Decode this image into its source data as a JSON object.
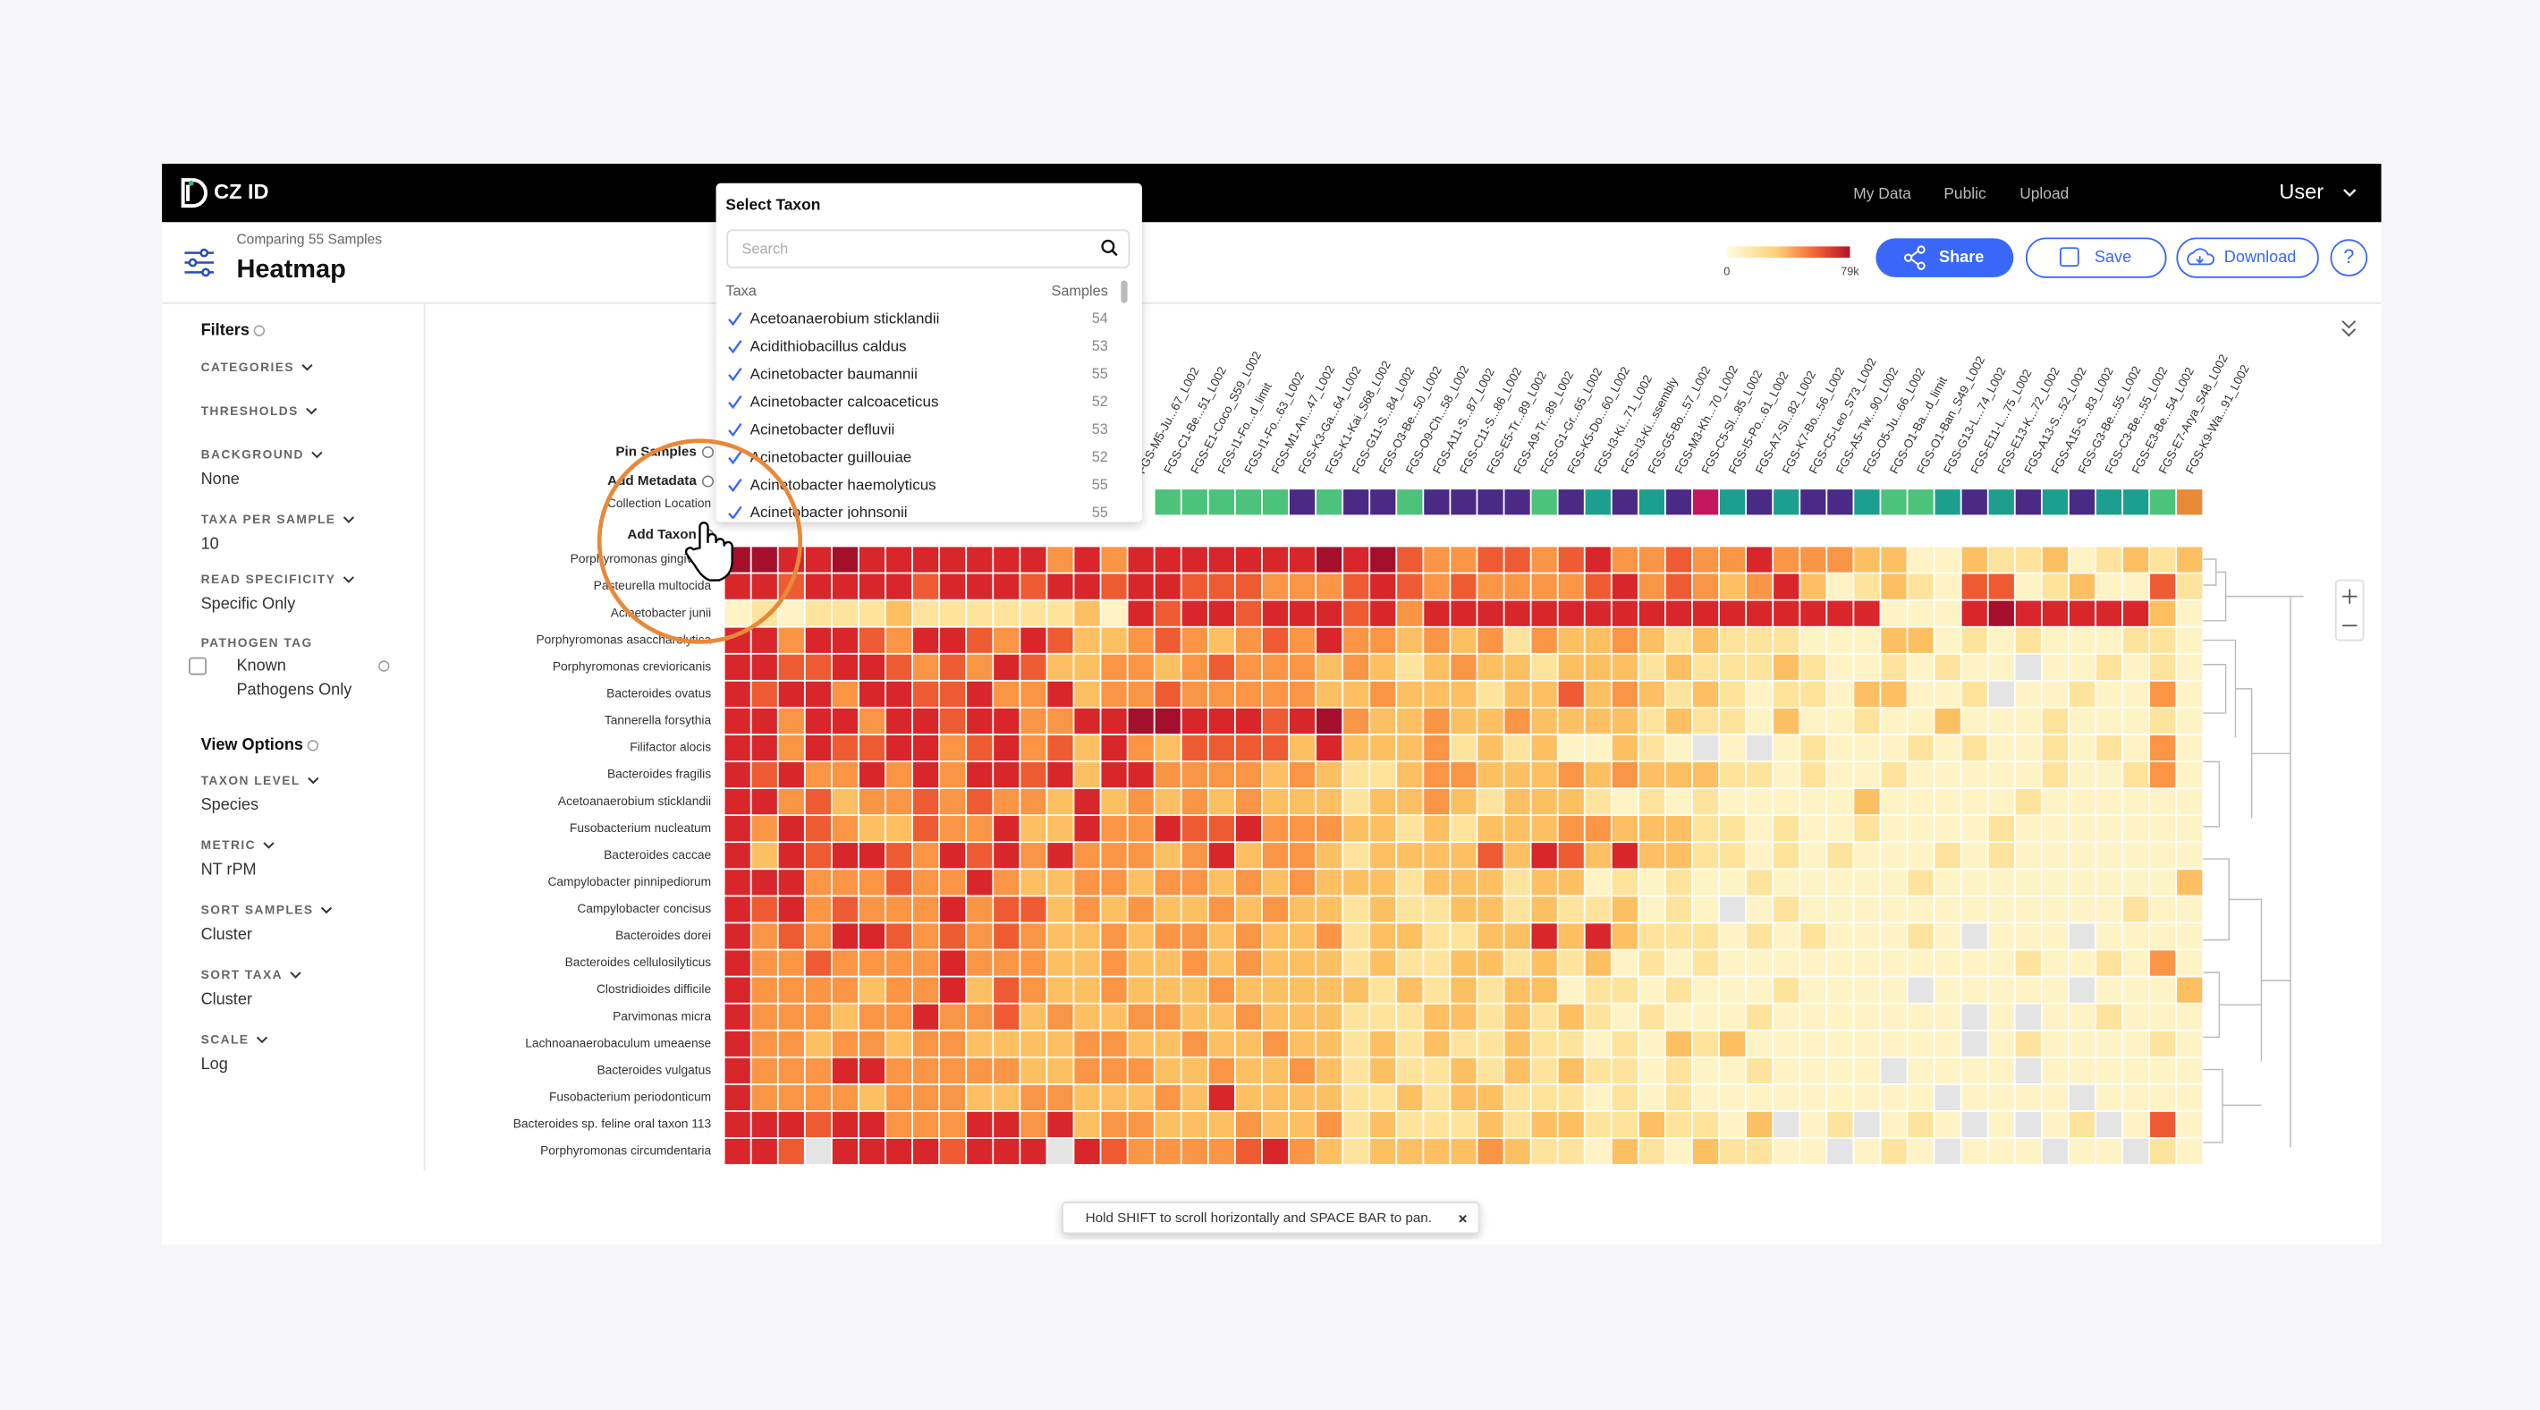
{
  "nav": {
    "brand": "CZ ID",
    "links": [
      "My Data",
      "Public",
      "Upload"
    ],
    "user": "User"
  },
  "header": {
    "subtitle": "Comparing 55 Samples",
    "title": "Heatmap",
    "legend_min": "0",
    "legend_max": "79k",
    "buttons": [
      "Share",
      "Save",
      "Download"
    ]
  },
  "filters": {
    "title": "Filters",
    "items": [
      {
        "label": "CATEGORIES"
      },
      {
        "label": "THRESHOLDS"
      },
      {
        "label": "BACKGROUND",
        "value": "None"
      },
      {
        "label": "TAXA PER SAMPLE",
        "value": "10"
      },
      {
        "label": "READ SPECIFICITY",
        "value": "Specific Only"
      },
      {
        "label": "PATHOGEN TAG",
        "value": [
          "Known",
          "Pathogens Only"
        ]
      }
    ]
  },
  "view_options": {
    "title": "View Options",
    "items": [
      {
        "label": "TAXON LEVEL",
        "value": "Species"
      },
      {
        "label": "METRIC",
        "value": "NT rPM"
      },
      {
        "label": "SORT SAMPLES",
        "value": "Cluster"
      },
      {
        "label": "SORT TAXA",
        "value": "Cluster"
      },
      {
        "label": "SCALE",
        "value": "Log"
      }
    ]
  },
  "heatmap": {
    "controls": [
      "Pin Samples",
      "Add Metadata",
      "Add Taxon"
    ],
    "metadata_label": "Collection Location",
    "rows": [
      "Porphyromonas gingivalis",
      "Pasteurella multocida",
      "Acinetobacter junii",
      "Porphyromonas asaccharolytica",
      "Porphyromonas crevioricanis",
      "Bacteroides ovatus",
      "Tannerella forsythia",
      "Filifactor alocis",
      "Bacteroides fragilis",
      "Acetoanaerobium sticklandii",
      "Fusobacterium nucleatum",
      "Bacteroides caccae",
      "Campylobacter pinnipediorum",
      "Campylobacter concisus",
      "Bacteroides dorei",
      "Bacteroides cellulosilyticus",
      "Clostridioides difficile",
      "Parvimonas micra",
      "Lachnoanaerobaculum umeaense",
      "Bacteroides vulgatus",
      "Fusobacterium periodonticum",
      "Bacteroides sp. feline oral taxon 113",
      "Porphyromonas circumdentaria"
    ],
    "columns": [
      null,
      null,
      null,
      null,
      null,
      null,
      null,
      null,
      null,
      null,
      null,
      null,
      null,
      null,
      null,
      "FGS-M5-Ju...67_L002",
      "FGS-C1-Be...51_L002",
      "FGS-E1-Coco_S59_L002",
      "FGS-I1-Fo...d_limit",
      "FGS-I1-Fo...63_L002",
      "FGS-M1-An...47_L002",
      "FGS-K3-Ga...64_L002",
      "FGS-K1-Kai_S68_L002",
      "FGS-G11-S...84_L002",
      "FGS-O3-Be...50_L002",
      "FGS-O9-Ch...58_L002",
      "FGS-A11-S...87_L002",
      "FGS-C11-S...86_L002",
      "FGS-E5-Tr...89_L002",
      "FGS-A9-Tr...89_L002",
      "FGS-G1-Gr...65_L002",
      "FGS-K5-Do...60_L002",
      "FGS-I3-Ki...71_L002",
      "FGS-I3-Ki...ssembly",
      "FGS-G5-Bo...57_L002",
      "FGS-M3-Kh...70_L002",
      "FGS-C5-Sl...85_L002",
      "FGS-I5-Po...61_L002",
      "FGS-A7-Sl...82_L002",
      "FGS-K7-Bo...56_L002",
      "FGS-C5-Leo_S73_L002",
      "FGS-A5-Tw...90_L002",
      "FGS-O5-Ju...66_L002",
      "FGS-O1-Ba...d_limit",
      "FGS-O1-Ban_S49_L002",
      "FGS-G13-L...74_L002",
      "FGS-E11-L...75_L002",
      "FGS-E13-K...72_L002",
      "FGS-A13-S...52_L002",
      "FGS-A15-S...83_L002",
      "FGS-G3-Be...55_L002",
      "FGS-C3-Be...55_L002",
      "FGS-E3-Be...54_L002",
      "FGS-E7-Arya_S48_L002",
      "FGS-K9-Wa...91_L002"
    ],
    "metadata_colors": [
      null,
      null,
      null,
      null,
      null,
      null,
      null,
      null,
      null,
      null,
      null,
      null,
      null,
      null,
      null,
      null,
      "#4cc27a",
      "#4cc27a",
      "#4cc27a",
      "#4cc27a",
      "#4cc27a",
      "#4b2a86",
      "#4cc27a",
      "#4b2a86",
      "#4b2a86",
      "#4cc27a",
      "#4b2a86",
      "#4b2a86",
      "#4b2a86",
      "#4b2a86",
      "#4cc27a",
      "#4b2a86",
      "#1c9f8e",
      "#4b2a86",
      "#1c9f8e",
      "#4b2a86",
      "#c4175f",
      "#1c9f8e",
      "#4b2a86",
      "#1c9f8e",
      "#4b2a86",
      "#4b2a86",
      "#1c9f8e",
      "#4cc27a",
      "#4cc27a",
      "#1c9f8e",
      "#4b2a86",
      "#1c9f8e",
      "#4b2a86",
      "#1c9f8e",
      "#4b2a86",
      "#1c9f8e",
      "#1c9f8e",
      "#4cc27a",
      "#e8893a"
    ],
    "palette": [
      "#e4e4e4",
      "#fdf3c4",
      "#fde39c",
      "#fcc062",
      "#f99545",
      "#ee5b33",
      "#d8262b",
      "#a50f2b"
    ],
    "cells": [
      [
        7,
        7,
        6,
        6,
        7,
        6,
        6,
        6,
        6,
        6,
        6,
        6,
        4,
        6,
        4,
        6,
        6,
        6,
        6,
        6,
        6,
        6,
        7,
        6,
        7,
        5,
        4,
        4,
        5,
        5,
        4,
        5,
        6,
        4,
        4,
        5,
        4,
        4,
        6,
        4,
        4,
        4,
        3,
        3,
        1,
        1,
        3,
        2,
        2,
        3,
        1,
        2,
        3,
        2,
        3
      ],
      [
        6,
        6,
        5,
        6,
        6,
        6,
        6,
        5,
        6,
        6,
        6,
        5,
        6,
        6,
        5,
        6,
        6,
        5,
        5,
        5,
        4,
        4,
        4,
        5,
        6,
        5,
        4,
        5,
        4,
        4,
        4,
        4,
        5,
        6,
        4,
        5,
        4,
        3,
        4,
        6,
        3,
        1,
        2,
        3,
        2,
        1,
        5,
        5,
        1,
        2,
        3,
        1,
        1,
        5,
        2
      ],
      [
        1,
        2,
        1,
        2,
        2,
        2,
        3,
        2,
        2,
        2,
        2,
        2,
        2,
        3,
        1,
        6,
        5,
        6,
        6,
        5,
        6,
        6,
        6,
        5,
        6,
        4,
        6,
        6,
        6,
        6,
        6,
        6,
        6,
        6,
        6,
        6,
        6,
        6,
        6,
        6,
        6,
        6,
        6,
        1,
        1,
        1,
        6,
        7,
        6,
        6,
        6,
        6,
        6,
        3,
        1
      ],
      [
        6,
        6,
        4,
        6,
        6,
        5,
        4,
        6,
        6,
        5,
        4,
        6,
        5,
        3,
        3,
        4,
        5,
        4,
        3,
        4,
        5,
        4,
        6,
        4,
        4,
        3,
        4,
        3,
        4,
        2,
        4,
        3,
        3,
        4,
        3,
        2,
        3,
        2,
        2,
        2,
        1,
        1,
        1,
        3,
        3,
        1,
        2,
        1,
        2,
        1,
        1,
        1,
        2,
        2,
        1
      ],
      [
        6,
        6,
        5,
        5,
        6,
        6,
        5,
        4,
        5,
        4,
        6,
        5,
        3,
        3,
        4,
        4,
        3,
        4,
        5,
        4,
        4,
        4,
        3,
        4,
        3,
        2,
        3,
        4,
        3,
        3,
        2,
        3,
        3,
        3,
        2,
        3,
        2,
        2,
        2,
        3,
        2,
        1,
        1,
        2,
        1,
        2,
        1,
        1,
        0,
        1,
        1,
        2,
        1,
        2,
        1
      ],
      [
        6,
        5,
        6,
        6,
        4,
        6,
        6,
        5,
        5,
        6,
        4,
        4,
        6,
        3,
        4,
        4,
        5,
        4,
        4,
        4,
        4,
        4,
        3,
        3,
        4,
        3,
        3,
        3,
        2,
        3,
        3,
        5,
        3,
        4,
        3,
        2,
        3,
        2,
        1,
        2,
        2,
        1,
        3,
        3,
        1,
        1,
        2,
        0,
        1,
        1,
        2,
        1,
        1,
        4,
        1
      ],
      [
        6,
        6,
        4,
        6,
        6,
        4,
        6,
        6,
        5,
        6,
        6,
        4,
        4,
        6,
        6,
        7,
        7,
        6,
        6,
        6,
        5,
        6,
        7,
        4,
        3,
        3,
        4,
        3,
        3,
        4,
        3,
        3,
        3,
        3,
        2,
        3,
        2,
        2,
        1,
        3,
        1,
        1,
        2,
        1,
        1,
        3,
        1,
        1,
        1,
        2,
        1,
        1,
        1,
        2,
        1
      ],
      [
        6,
        6,
        4,
        6,
        5,
        5,
        6,
        6,
        4,
        5,
        6,
        4,
        5,
        3,
        6,
        4,
        3,
        5,
        5,
        5,
        5,
        3,
        6,
        3,
        3,
        3,
        4,
        2,
        3,
        2,
        3,
        1,
        1,
        3,
        2,
        1,
        0,
        1,
        0,
        1,
        2,
        1,
        1,
        1,
        2,
        1,
        2,
        1,
        1,
        2,
        1,
        2,
        1,
        4,
        1
      ],
      [
        6,
        5,
        6,
        4,
        4,
        6,
        4,
        6,
        4,
        6,
        6,
        5,
        6,
        3,
        6,
        6,
        4,
        4,
        4,
        4,
        3,
        4,
        3,
        2,
        2,
        3,
        4,
        4,
        3,
        3,
        3,
        4,
        3,
        4,
        3,
        3,
        3,
        2,
        2,
        1,
        2,
        1,
        1,
        2,
        1,
        1,
        1,
        1,
        1,
        2,
        1,
        1,
        2,
        4,
        1
      ],
      [
        6,
        6,
        4,
        5,
        3,
        4,
        4,
        5,
        4,
        5,
        4,
        4,
        3,
        6,
        3,
        4,
        3,
        4,
        3,
        4,
        3,
        3,
        3,
        2,
        3,
        3,
        4,
        3,
        2,
        3,
        3,
        3,
        2,
        1,
        2,
        1,
        2,
        1,
        1,
        1,
        1,
        1,
        3,
        1,
        1,
        1,
        1,
        1,
        2,
        1,
        1,
        1,
        1,
        1,
        1
      ],
      [
        6,
        4,
        6,
        5,
        4,
        3,
        3,
        5,
        4,
        4,
        6,
        3,
        3,
        6,
        4,
        4,
        6,
        5,
        5,
        6,
        4,
        4,
        4,
        3,
        3,
        2,
        3,
        2,
        3,
        3,
        3,
        4,
        4,
        3,
        3,
        3,
        2,
        2,
        1,
        2,
        1,
        1,
        2,
        1,
        1,
        1,
        1,
        2,
        1,
        1,
        1,
        1,
        1,
        1,
        1
      ],
      [
        6,
        3,
        6,
        5,
        6,
        6,
        5,
        4,
        6,
        5,
        6,
        4,
        6,
        4,
        4,
        4,
        3,
        4,
        6,
        3,
        4,
        4,
        3,
        2,
        3,
        3,
        3,
        3,
        5,
        3,
        6,
        5,
        3,
        6,
        3,
        3,
        2,
        2,
        1,
        2,
        1,
        2,
        1,
        1,
        1,
        2,
        1,
        2,
        1,
        1,
        1,
        1,
        1,
        1,
        1
      ],
      [
        6,
        6,
        6,
        4,
        4,
        4,
        5,
        4,
        4,
        6,
        4,
        3,
        3,
        4,
        4,
        3,
        4,
        4,
        3,
        4,
        3,
        4,
        3,
        3,
        3,
        2,
        3,
        3,
        3,
        2,
        3,
        3,
        1,
        2,
        1,
        2,
        1,
        1,
        2,
        1,
        1,
        1,
        1,
        1,
        2,
        1,
        1,
        1,
        1,
        1,
        1,
        1,
        1,
        1,
        3
      ],
      [
        6,
        5,
        6,
        4,
        5,
        4,
        4,
        4,
        6,
        4,
        5,
        5,
        3,
        4,
        3,
        4,
        3,
        3,
        4,
        3,
        4,
        3,
        3,
        2,
        3,
        2,
        2,
        3,
        3,
        2,
        3,
        2,
        2,
        3,
        1,
        2,
        1,
        0,
        1,
        2,
        1,
        1,
        1,
        1,
        1,
        1,
        1,
        1,
        1,
        1,
        1,
        1,
        2,
        1,
        1
      ],
      [
        6,
        4,
        5,
        4,
        6,
        6,
        5,
        4,
        5,
        4,
        5,
        4,
        3,
        3,
        4,
        3,
        4,
        4,
        3,
        4,
        3,
        3,
        4,
        2,
        3,
        3,
        2,
        2,
        3,
        3,
        6,
        3,
        6,
        3,
        2,
        2,
        2,
        1,
        2,
        1,
        2,
        1,
        1,
        1,
        2,
        1,
        0,
        1,
        1,
        1,
        0,
        1,
        1,
        1,
        1
      ],
      [
        6,
        4,
        4,
        5,
        4,
        4,
        4,
        4,
        6,
        4,
        4,
        4,
        3,
        3,
        4,
        3,
        3,
        4,
        3,
        4,
        3,
        3,
        3,
        2,
        3,
        2,
        2,
        3,
        3,
        2,
        3,
        2,
        3,
        1,
        2,
        1,
        2,
        1,
        1,
        1,
        1,
        1,
        1,
        1,
        1,
        1,
        1,
        1,
        2,
        1,
        1,
        2,
        1,
        4,
        1
      ],
      [
        6,
        4,
        4,
        4,
        4,
        3,
        4,
        4,
        6,
        3,
        5,
        4,
        3,
        3,
        4,
        3,
        3,
        3,
        4,
        3,
        3,
        3,
        3,
        3,
        2,
        3,
        2,
        3,
        2,
        3,
        3,
        1,
        2,
        2,
        1,
        2,
        1,
        1,
        1,
        2,
        1,
        1,
        1,
        1,
        0,
        1,
        1,
        1,
        1,
        1,
        0,
        1,
        1,
        1,
        3
      ],
      [
        6,
        4,
        4,
        4,
        3,
        4,
        4,
        6,
        4,
        4,
        5,
        3,
        4,
        3,
        3,
        4,
        4,
        3,
        3,
        4,
        3,
        3,
        3,
        2,
        2,
        2,
        3,
        3,
        2,
        3,
        2,
        3,
        2,
        1,
        2,
        1,
        1,
        1,
        2,
        1,
        1,
        1,
        1,
        1,
        1,
        1,
        0,
        1,
        0,
        1,
        1,
        2,
        1,
        1,
        1
      ],
      [
        6,
        4,
        4,
        3,
        4,
        4,
        3,
        4,
        4,
        3,
        3,
        3,
        3,
        4,
        4,
        3,
        3,
        4,
        3,
        3,
        4,
        3,
        3,
        2,
        3,
        2,
        3,
        2,
        2,
        3,
        2,
        2,
        1,
        2,
        1,
        3,
        2,
        3,
        1,
        1,
        1,
        1,
        1,
        1,
        1,
        1,
        0,
        1,
        2,
        1,
        1,
        1,
        1,
        2,
        1
      ],
      [
        6,
        4,
        4,
        4,
        6,
        6,
        4,
        4,
        4,
        4,
        4,
        3,
        3,
        4,
        4,
        4,
        3,
        3,
        4,
        3,
        3,
        4,
        3,
        2,
        3,
        2,
        2,
        3,
        2,
        3,
        2,
        3,
        2,
        2,
        1,
        2,
        1,
        1,
        2,
        1,
        1,
        1,
        1,
        0,
        1,
        1,
        1,
        1,
        0,
        1,
        1,
        1,
        1,
        1,
        1
      ],
      [
        6,
        4,
        4,
        4,
        4,
        3,
        4,
        4,
        4,
        3,
        3,
        4,
        4,
        3,
        3,
        3,
        4,
        3,
        6,
        3,
        3,
        3,
        3,
        2,
        2,
        3,
        2,
        3,
        3,
        2,
        2,
        2,
        1,
        2,
        1,
        2,
        1,
        1,
        1,
        1,
        1,
        1,
        1,
        1,
        1,
        0,
        1,
        1,
        1,
        1,
        0,
        1,
        1,
        1,
        1
      ],
      [
        6,
        6,
        6,
        5,
        6,
        6,
        4,
        4,
        4,
        6,
        6,
        4,
        6,
        3,
        4,
        4,
        3,
        3,
        3,
        4,
        3,
        3,
        4,
        2,
        3,
        2,
        2,
        2,
        3,
        2,
        3,
        3,
        2,
        2,
        3,
        2,
        2,
        1,
        3,
        0,
        1,
        2,
        0,
        1,
        2,
        1,
        0,
        1,
        0,
        1,
        2,
        0,
        1,
        5,
        1
      ],
      [
        6,
        6,
        5,
        0,
        6,
        6,
        6,
        6,
        5,
        6,
        6,
        6,
        0,
        6,
        5,
        4,
        4,
        4,
        4,
        5,
        6,
        4,
        3,
        2,
        3,
        3,
        3,
        3,
        4,
        3,
        2,
        2,
        1,
        3,
        2,
        1,
        3,
        2,
        2,
        1,
        1,
        0,
        1,
        2,
        1,
        0,
        1,
        1,
        1,
        0,
        1,
        1,
        0,
        2,
        1
      ]
    ]
  },
  "popup": {
    "title": "Select Taxon",
    "search_placeholder": "Search",
    "col_taxa": "Taxa",
    "col_samples": "Samples",
    "items": [
      {
        "name": "Acetoanaerobium sticklandii",
        "samples": 54
      },
      {
        "name": "Acidithiobacillus caldus",
        "samples": 53
      },
      {
        "name": "Acinetobacter baumannii",
        "samples": 55
      },
      {
        "name": "Acinetobacter calcoaceticus",
        "samples": 52
      },
      {
        "name": "Acinetobacter defluvii",
        "samples": 53
      },
      {
        "name": "Acinetobacter guillouiae",
        "samples": 52
      },
      {
        "name": "Acinetobacter haemolyticus",
        "samples": 55
      },
      {
        "name": "Acinetobacter johnsonii",
        "samples": 55
      }
    ]
  },
  "toast": "Hold SHIFT to scroll horizontally and SPACE BAR to pan."
}
